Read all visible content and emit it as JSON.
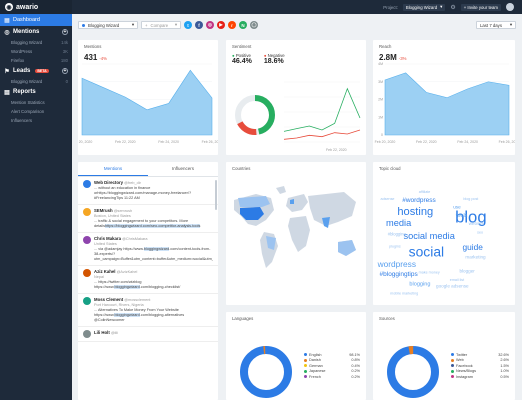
{
  "brand": "awario",
  "sidebar": {
    "dashboard": "Dashboard",
    "mentions": "Mentions",
    "alerts": [
      {
        "label": "Blogging Wizard",
        "count": "14k"
      },
      {
        "label": "WordPress",
        "count": "3K"
      },
      {
        "label": "Firefox",
        "count": "180"
      }
    ],
    "leads": "Leads",
    "leads_badge": "BETA",
    "lead_alerts": [
      {
        "label": "Blogging Wizard",
        "count": "0"
      }
    ],
    "reports": "Reports",
    "report_items": [
      "Mention Statistics",
      "Alert Comparison",
      "Influencers"
    ]
  },
  "top": {
    "project_label": "Project:",
    "project": "Blogging Wizard",
    "invite": "+ Invite your team"
  },
  "filters": {
    "alert": "Blogging Wizard",
    "compare": "Compare",
    "period": "Last 7 days"
  },
  "mentions": {
    "title": "Mentions",
    "count": "431",
    "change": "-4%",
    "dates": [
      "Feb 20, 2020",
      "Feb 22, 2020",
      "Feb 24, 2020",
      "Feb 26, 2020"
    ]
  },
  "sentiment": {
    "title": "Sentiment",
    "pos_label": "Positive",
    "neg_label": "Negative",
    "pos": "46.4%",
    "neg": "18.6%",
    "date": "Feb 22, 2020"
  },
  "reach": {
    "title": "Reach",
    "count": "2.8M",
    "change": "-3%",
    "y": [
      "4M",
      "3M",
      "2M",
      "1M",
      "0"
    ],
    "dates": [
      "Feb 20, 2020",
      "Feb 22, 2020",
      "Feb 24, 2020",
      "Feb 26, 2020"
    ]
  },
  "tabs": {
    "mentions": "Mentions",
    "influencers": "Influencers"
  },
  "items": [
    {
      "name": "Web Directory",
      "handle": "@freb_dir",
      "text": "... without an education in finance or",
      "hl": "",
      "text2": "https://bloggingwizard.com/manage-money-freelancer/?#FreelancingTips 11:22 AM",
      "color": "#2c7be5"
    },
    {
      "name": "SEMrush",
      "handle": "@semrush",
      "meta": "Boston, United States",
      "text": "... traffic & social engagement to your competitors. More details",
      "hl": "https://bloggingwizard.com/seo-competitor-analysis-tools",
      "text2": "",
      "color": "#f5a623"
    },
    {
      "name": "Chris Makara",
      "handle": "@ChrisMakara",
      "meta": "United States",
      "text": "... via @adamjay https://www.",
      "hl": "bloggingwizard",
      "text2": ".com/content-tools-from-38-experts/?utm_campaign=Buffer&utm_content=buffer&utm_medium=social&utm_source=twitter",
      "color": "#8e44ad"
    },
    {
      "name": "Aziz Kahel",
      "handle": "@AzizKahel",
      "meta": "Nepal",
      "text": "... https://twitter.com/wizblog https://www.",
      "hl": "bloggingwizard",
      "text2": ".com/blogging-checklist/",
      "color": "#d35400"
    },
    {
      "name": "Moss Clement",
      "handle": "@mossclement",
      "meta": "Port Harcourt, Rivers, Nigeria",
      "text": "... Alternatives To Make Money From Your Website https://www.",
      "hl": "bloggingwizard",
      "text2": ".com/blogging-alternatives @ColinNewcomer",
      "color": "#16a085"
    },
    {
      "name": "Lili Holt",
      "handle": "@lili",
      "text": "",
      "hl": "",
      "text2": "",
      "color": "#7f8c8d"
    }
  ],
  "countries": {
    "title": "Countries"
  },
  "topics": {
    "title": "Topic cloud",
    "words": [
      {
        "t": "blog",
        "s": 18,
        "x": 100,
        "y": 48,
        "c": "#2c7be5"
      },
      {
        "t": "social",
        "s": 15,
        "x": 52,
        "y": 85,
        "c": "#2c7be5"
      },
      {
        "t": "hosting",
        "s": 12,
        "x": 40,
        "y": 40,
        "c": "#2c7be5"
      },
      {
        "t": "social media",
        "s": 10,
        "x": 55,
        "y": 66,
        "c": "#2c7be5"
      },
      {
        "t": "media",
        "s": 10,
        "x": 22,
        "y": 52,
        "c": "#2c7be5"
      },
      {
        "t": "wordpress",
        "s": 9,
        "x": 20,
        "y": 96,
        "c": "#5aa0ee"
      },
      {
        "t": "guide",
        "s": 9,
        "x": 102,
        "y": 78,
        "c": "#2c7be5"
      },
      {
        "t": "#wordpress",
        "s": 7,
        "x": 44,
        "y": 26,
        "c": "#2c7be5"
      },
      {
        "t": "#bloggingtips",
        "s": 7,
        "x": 22,
        "y": 106,
        "c": "#2c7be5"
      },
      {
        "t": "blogging",
        "s": 6,
        "x": 45,
        "y": 116,
        "c": "#5aa0ee"
      },
      {
        "t": "tools",
        "s": 6,
        "x": 90,
        "y": 42,
        "c": "#5aa0ee"
      },
      {
        "t": "marketing",
        "s": 5,
        "x": 105,
        "y": 87,
        "c": "#9cc3f0"
      },
      {
        "t": "website",
        "s": 5,
        "x": 106,
        "y": 51,
        "c": "#9cc3f0"
      },
      {
        "t": "google adsense",
        "s": 5,
        "x": 80,
        "y": 118,
        "c": "#9cc3f0"
      },
      {
        "t": "blogger",
        "s": 5,
        "x": 96,
        "y": 102,
        "c": "#9cc3f0"
      },
      {
        "t": "#blogging",
        "s": 4.5,
        "x": 20,
        "y": 62,
        "c": "#9cc3f0"
      },
      {
        "t": "adsense",
        "s": 4,
        "x": 10,
        "y": 24,
        "c": "#9cc3f0"
      },
      {
        "t": "affiliate",
        "s": 4,
        "x": 50,
        "y": 16,
        "c": "#9cc3f0"
      },
      {
        "t": "use",
        "s": 5,
        "x": 85,
        "y": 33,
        "c": "#5aa0ee"
      },
      {
        "t": "blog post",
        "s": 4,
        "x": 100,
        "y": 24,
        "c": "#9cc3f0"
      },
      {
        "t": "seo",
        "s": 4,
        "x": 110,
        "y": 60,
        "c": "#9cc3f0"
      },
      {
        "t": "plugins",
        "s": 4,
        "x": 18,
        "y": 75,
        "c": "#9cc3f0"
      },
      {
        "t": "email list",
        "s": 4,
        "x": 85,
        "y": 111,
        "c": "#9cc3f0"
      },
      {
        "t": "make money",
        "s": 4,
        "x": 55,
        "y": 103,
        "c": "#9cc3f0"
      },
      {
        "t": "mobile marketing",
        "s": 4,
        "x": 28,
        "y": 126,
        "c": "#9cc3f0"
      }
    ]
  },
  "languages": {
    "title": "Languages",
    "items": [
      {
        "label": "English",
        "value": "98.1%",
        "color": "#2c7be5"
      },
      {
        "label": "Danish",
        "value": "0.8%",
        "color": "#e67e22"
      },
      {
        "label": "German",
        "value": "0.4%",
        "color": "#f1c40f"
      },
      {
        "label": "Japanese",
        "value": "0.2%",
        "color": "#27ae60"
      },
      {
        "label": "French",
        "value": "0.2%",
        "color": "#8e44ad"
      }
    ]
  },
  "sources": {
    "title": "Sources",
    "items": [
      {
        "label": "Twitter",
        "value": "32.6%",
        "color": "#2c7be5"
      },
      {
        "label": "Web",
        "value": "2.6%",
        "color": "#e67e22"
      },
      {
        "label": "Facebook",
        "value": "1.5%",
        "color": "#3b5998"
      },
      {
        "label": "News/Blogs",
        "value": "1.0%",
        "color": "#27ae60"
      },
      {
        "label": "Instagram",
        "value": "0.5%",
        "color": "#c13584"
      }
    ]
  },
  "chart_data": [
    {
      "type": "area",
      "title": "Mentions",
      "x": [
        "Feb 20, 2020",
        "",
        "Feb 22, 2020",
        "",
        "Feb 24, 2020",
        "",
        "Feb 26, 2020"
      ],
      "values": [
        72,
        60,
        48,
        32,
        40,
        82,
        47
      ]
    },
    {
      "type": "line",
      "title": "Sentiment",
      "x": [
        "Feb 20, 2020",
        "",
        "Feb 22, 2020",
        "",
        "Feb 24, 2020",
        "",
        "Feb 26, 2020"
      ],
      "series": [
        {
          "name": "Positive",
          "values": [
            8,
            10,
            12,
            9,
            14,
            40,
            18
          ]
        },
        {
          "name": "Negative",
          "values": [
            2,
            3,
            5,
            4,
            7,
            6,
            9
          ]
        }
      ]
    },
    {
      "type": "area",
      "title": "Reach",
      "x": [
        "Feb 20, 2020",
        "",
        "Feb 22, 2020",
        "",
        "Feb 24, 2020",
        "",
        "Feb 26, 2020"
      ],
      "values": [
        3.1,
        3.5,
        2.4,
        2.1,
        2.6,
        3.0,
        2.8
      ],
      "ylim": [
        0,
        4
      ]
    }
  ]
}
